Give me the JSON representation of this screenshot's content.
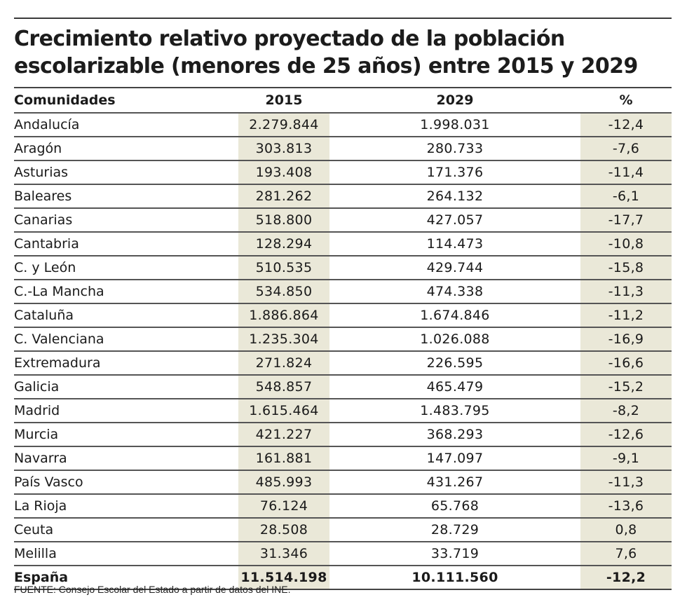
{
  "chart_data": {
    "type": "table",
    "title": "Crecimiento relativo proyectado de la población escolarizable (menores de 25 años) entre 2015 y 2029",
    "columns": [
      "Comunidades",
      "2015",
      "2029",
      "%"
    ],
    "rows": [
      {
        "name": "Andalucía",
        "y2015": "2.279.844",
        "y2029": "1.998.031",
        "pct": "-12,4"
      },
      {
        "name": "Aragón",
        "y2015": "303.813",
        "y2029": "280.733",
        "pct": "-7,6"
      },
      {
        "name": "Asturias",
        "y2015": "193.408",
        "y2029": "171.376",
        "pct": "-11,4"
      },
      {
        "name": "Baleares",
        "y2015": "281.262",
        "y2029": "264.132",
        "pct": "-6,1"
      },
      {
        "name": "Canarias",
        "y2015": "518.800",
        "y2029": "427.057",
        "pct": "-17,7"
      },
      {
        "name": "Cantabria",
        "y2015": "128.294",
        "y2029": "114.473",
        "pct": "-10,8"
      },
      {
        "name": "C. y León",
        "y2015": "510.535",
        "y2029": "429.744",
        "pct": "-15,8"
      },
      {
        "name": "C.-La Mancha",
        "y2015": "534.850",
        "y2029": "474.338",
        "pct": "-11,3"
      },
      {
        "name": "Cataluña",
        "y2015": "1.886.864",
        "y2029": "1.674.846",
        "pct": "-11,2"
      },
      {
        "name": "C. Valenciana",
        "y2015": "1.235.304",
        "y2029": "1.026.088",
        "pct": "-16,9"
      },
      {
        "name": "Extremadura",
        "y2015": "271.824",
        "y2029": "226.595",
        "pct": "-16,6"
      },
      {
        "name": "Galicia",
        "y2015": "548.857",
        "y2029": "465.479",
        "pct": "-15,2"
      },
      {
        "name": "Madrid",
        "y2015": "1.615.464",
        "y2029": "1.483.795",
        "pct": "-8,2"
      },
      {
        "name": "Murcia",
        "y2015": "421.227",
        "y2029": "368.293",
        "pct": "-12,6"
      },
      {
        "name": "Navarra",
        "y2015": "161.881",
        "y2029": "147.097",
        "pct": "-9,1"
      },
      {
        "name": "País Vasco",
        "y2015": "485.993",
        "y2029": "431.267",
        "pct": "-11,3"
      },
      {
        "name": "La Rioja",
        "y2015": "76.124",
        "y2029": "65.768",
        "pct": "-13,6"
      },
      {
        "name": "Ceuta",
        "y2015": "28.508",
        "y2029": "28.729",
        "pct": "0,8"
      },
      {
        "name": "Melilla",
        "y2015": "31.346",
        "y2029": "33.719",
        "pct": "7,6"
      }
    ],
    "total": {
      "name": "España",
      "y2015": "11.514.198",
      "y2029": "10.111.560",
      "pct": "-12,2"
    },
    "source": "FUENTE: Consejo Escolar del  Estado a partir de datos del INE.",
    "highlight_color": "#eae8d8"
  }
}
